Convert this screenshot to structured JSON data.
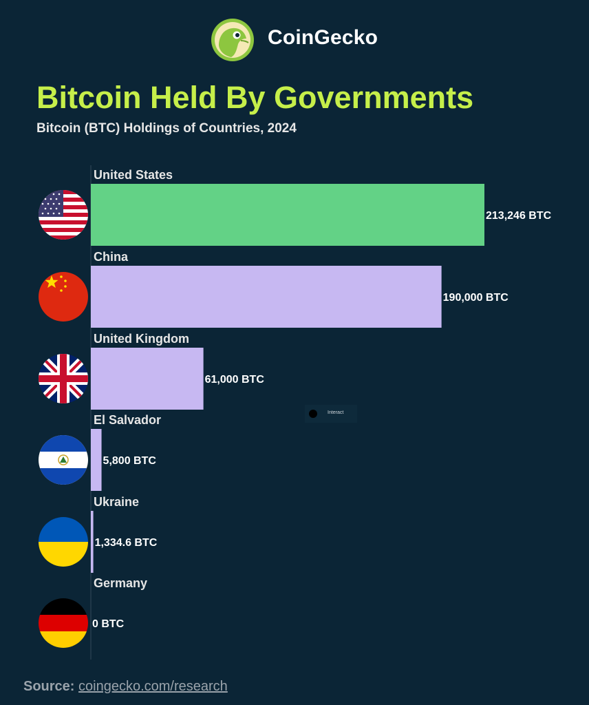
{
  "brand": {
    "name": "CoinGecko",
    "logo_icon": "coingecko-gecko-logo"
  },
  "header": {
    "title": "Bitcoin Held By Governments",
    "subtitle": "Bitcoin (BTC) Holdings of Countries, 2024"
  },
  "watermark": {
    "text": "Interact"
  },
  "source": {
    "label": "Source:",
    "value": "coingecko.com/research"
  },
  "colors": {
    "background": "#0b2536",
    "title": "#c6ef4a",
    "highlight_bar": "#63d286",
    "bar": "#c7b8f2"
  },
  "chart_data": {
    "type": "bar",
    "orientation": "horizontal",
    "title": "Bitcoin Held By Governments",
    "subtitle": "Bitcoin (BTC) Holdings of Countries, 2024",
    "categories": [
      "United States",
      "China",
      "United Kingdom",
      "El Salvador",
      "Ukraine",
      "Germany"
    ],
    "values": [
      213246,
      190000,
      61000,
      5800,
      1334.6,
      0
    ],
    "value_labels": [
      "213,246 BTC",
      "190,000 BTC",
      "61,000 BTC",
      "5,800 BTC",
      "1,334.6 BTC",
      "0 BTC"
    ],
    "flag_icons": [
      "us-flag-icon",
      "china-flag-icon",
      "uk-flag-icon",
      "el-salvador-flag-icon",
      "ukraine-flag-icon",
      "germany-flag-icon"
    ],
    "highlight_index": 0,
    "xlim": [
      0,
      213246
    ],
    "grid": false,
    "legend": "none"
  }
}
